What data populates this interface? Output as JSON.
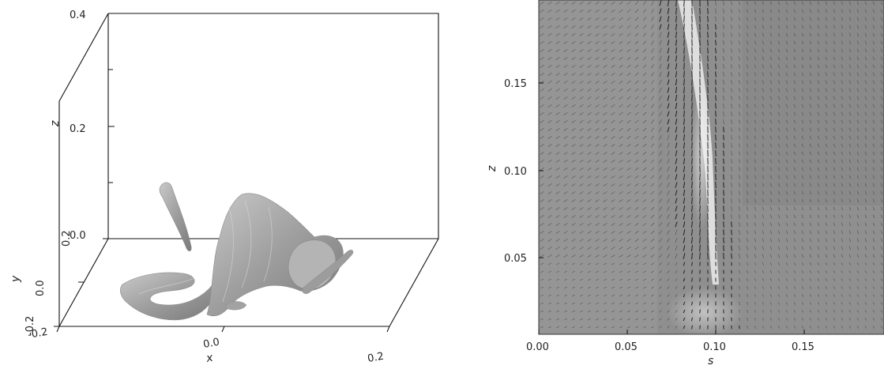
{
  "left_panel": {
    "axes": {
      "z": {
        "title": "z",
        "ticks": [
          "0.4",
          "0.2",
          "0.0"
        ]
      },
      "y": {
        "title": "y",
        "ticks": [
          "0.2",
          "0.0",
          "-0.2"
        ]
      },
      "x": {
        "title": "x",
        "ticks": [
          "-0.2",
          "0.0",
          "0.2"
        ]
      }
    },
    "surface_color": "#a8a8a8"
  },
  "right_panel": {
    "axes": {
      "s": {
        "title": "s",
        "ticks": [
          "0.00",
          "0.05",
          "0.10",
          "0.15"
        ]
      },
      "z": {
        "title": "z",
        "ticks": [
          "0.05",
          "0.10",
          "0.15"
        ]
      }
    },
    "xlim": [
      0,
      0.195
    ],
    "ylim": [
      0.005,
      0.195
    ],
    "background_color": "#8f8f8f"
  }
}
